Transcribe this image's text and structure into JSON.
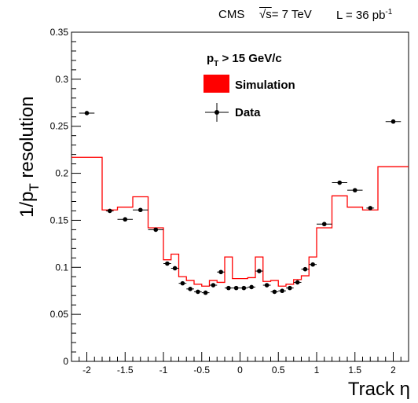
{
  "header": {
    "experiment": "CMS",
    "energy_prefix": "√s",
    "energy_value": "= 7 TeV",
    "lumi_text": "L = 36 pb",
    "lumi_exp": "-1"
  },
  "chart_data": {
    "type": "line",
    "ylabel_main": "1/p",
    "ylabel_sub": "T",
    "ylabel_tail": " resolution",
    "xlabel": "Track η",
    "xlim": [
      -2.2,
      2.2
    ],
    "ylim": [
      0,
      0.35
    ],
    "x_ticks": [
      -2,
      -1.5,
      -1,
      -0.5,
      0,
      0.5,
      1,
      1.5,
      2
    ],
    "x_tick_labels": [
      "-2",
      "-1.5",
      "-1",
      "-0.5",
      "0",
      "0.5",
      "1",
      "1.5",
      "2"
    ],
    "y_ticks": [
      0,
      0.05,
      0.1,
      0.15,
      0.2,
      0.25,
      0.3,
      0.35
    ],
    "y_tick_labels": [
      "0",
      "0.05",
      "0.1",
      "0.15",
      "0.2",
      "0.25",
      "0.3",
      "0.35"
    ],
    "legend": {
      "cut_main": "p",
      "cut_sub": "T",
      "cut_tail": " > 15 GeV/c",
      "simulation": "Simulation",
      "data": "Data"
    },
    "colors": {
      "simulation": "#ff0000",
      "data": "#000000"
    },
    "simulation_bins": [
      {
        "x_low": -2.2,
        "x_high": -1.8,
        "y": 0.217
      },
      {
        "x_low": -1.8,
        "x_high": -1.6,
        "y": 0.161
      },
      {
        "x_low": -1.6,
        "x_high": -1.4,
        "y": 0.164
      },
      {
        "x_low": -1.4,
        "x_high": -1.2,
        "y": 0.175
      },
      {
        "x_low": -1.2,
        "x_high": -1.0,
        "y": 0.142
      },
      {
        "x_low": -1.0,
        "x_high": -0.9,
        "y": 0.108
      },
      {
        "x_low": -0.9,
        "x_high": -0.8,
        "y": 0.114
      },
      {
        "x_low": -0.8,
        "x_high": -0.7,
        "y": 0.09
      },
      {
        "x_low": -0.7,
        "x_high": -0.6,
        "y": 0.086
      },
      {
        "x_low": -0.6,
        "x_high": -0.5,
        "y": 0.082
      },
      {
        "x_low": -0.5,
        "x_high": -0.4,
        "y": 0.08
      },
      {
        "x_low": -0.4,
        "x_high": -0.3,
        "y": 0.086
      },
      {
        "x_low": -0.3,
        "x_high": -0.2,
        "y": 0.084
      },
      {
        "x_low": -0.2,
        "x_high": -0.1,
        "y": 0.111
      },
      {
        "x_low": -0.1,
        "x_high": 0.1,
        "y": 0.088
      },
      {
        "x_low": 0.1,
        "x_high": 0.2,
        "y": 0.089
      },
      {
        "x_low": 0.2,
        "x_high": 0.3,
        "y": 0.111
      },
      {
        "x_low": 0.3,
        "x_high": 0.4,
        "y": 0.085
      },
      {
        "x_low": 0.4,
        "x_high": 0.5,
        "y": 0.086
      },
      {
        "x_low": 0.5,
        "x_high": 0.6,
        "y": 0.08
      },
      {
        "x_low": 0.6,
        "x_high": 0.7,
        "y": 0.082
      },
      {
        "x_low": 0.7,
        "x_high": 0.8,
        "y": 0.087
      },
      {
        "x_low": 0.8,
        "x_high": 0.9,
        "y": 0.091
      },
      {
        "x_low": 0.9,
        "x_high": 1.0,
        "y": 0.111
      },
      {
        "x_low": 1.0,
        "x_high": 1.2,
        "y": 0.142
      },
      {
        "x_low": 1.2,
        "x_high": 1.4,
        "y": 0.176
      },
      {
        "x_low": 1.4,
        "x_high": 1.6,
        "y": 0.164
      },
      {
        "x_low": 1.6,
        "x_high": 1.8,
        "y": 0.161
      },
      {
        "x_low": 1.8,
        "x_high": 2.2,
        "y": 0.207
      }
    ],
    "data_points": [
      {
        "x": -2.0,
        "xerr": 0.1,
        "y": 0.264
      },
      {
        "x": -1.7,
        "xerr": 0.05,
        "y": 0.16
      },
      {
        "x": -1.5,
        "xerr": 0.1,
        "y": 0.151
      },
      {
        "x": -1.3,
        "xerr": 0.1,
        "y": 0.161
      },
      {
        "x": -1.1,
        "xerr": 0.1,
        "y": 0.14
      },
      {
        "x": -0.95,
        "xerr": 0.05,
        "y": 0.104
      },
      {
        "x": -0.85,
        "xerr": 0.05,
        "y": 0.099
      },
      {
        "x": -0.75,
        "xerr": 0.05,
        "y": 0.083
      },
      {
        "x": -0.65,
        "xerr": 0.05,
        "y": 0.077
      },
      {
        "x": -0.55,
        "xerr": 0.05,
        "y": 0.074
      },
      {
        "x": -0.45,
        "xerr": 0.05,
        "y": 0.073
      },
      {
        "x": -0.35,
        "xerr": 0.05,
        "y": 0.081
      },
      {
        "x": -0.25,
        "xerr": 0.05,
        "y": 0.095
      },
      {
        "x": -0.15,
        "xerr": 0.05,
        "y": 0.078
      },
      {
        "x": -0.05,
        "xerr": 0.05,
        "y": 0.078
      },
      {
        "x": 0.05,
        "xerr": 0.05,
        "y": 0.078
      },
      {
        "x": 0.15,
        "xerr": 0.05,
        "y": 0.079
      },
      {
        "x": 0.25,
        "xerr": 0.05,
        "y": 0.096
      },
      {
        "x": 0.35,
        "xerr": 0.05,
        "y": 0.081
      },
      {
        "x": 0.45,
        "xerr": 0.05,
        "y": 0.074
      },
      {
        "x": 0.55,
        "xerr": 0.05,
        "y": 0.075
      },
      {
        "x": 0.65,
        "xerr": 0.05,
        "y": 0.078
      },
      {
        "x": 0.75,
        "xerr": 0.05,
        "y": 0.084
      },
      {
        "x": 0.85,
        "xerr": 0.05,
        "y": 0.098
      },
      {
        "x": 0.95,
        "xerr": 0.05,
        "y": 0.103
      },
      {
        "x": 1.1,
        "xerr": 0.1,
        "y": 0.146
      },
      {
        "x": 1.3,
        "xerr": 0.1,
        "y": 0.19
      },
      {
        "x": 1.5,
        "xerr": 0.1,
        "y": 0.182
      },
      {
        "x": 1.7,
        "xerr": 0.05,
        "y": 0.163
      },
      {
        "x": 2.0,
        "xerr": 0.1,
        "y": 0.255
      }
    ]
  }
}
